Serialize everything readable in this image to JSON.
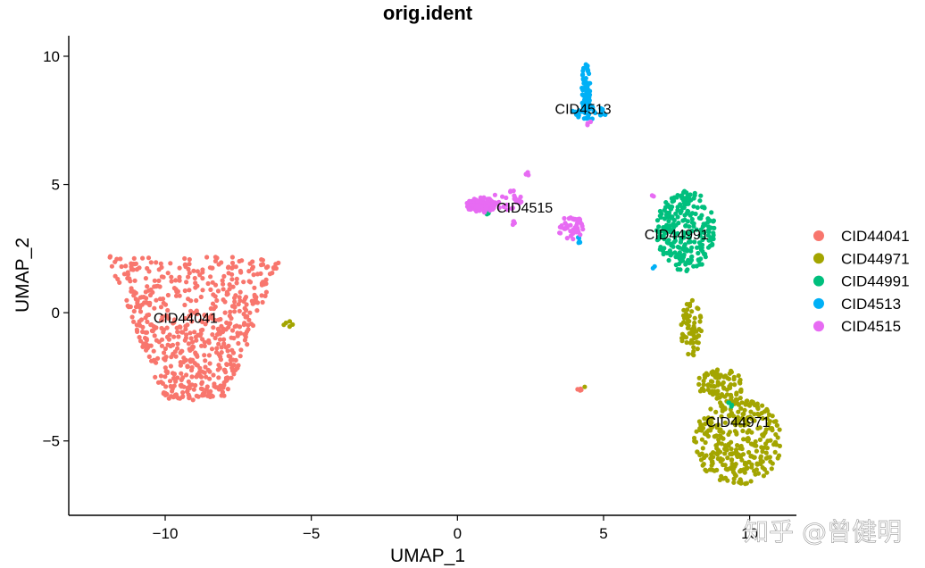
{
  "chart_data": {
    "type": "scatter",
    "title": "orig.ident",
    "xlabel": "UMAP_1",
    "ylabel": "UMAP_2",
    "xlim": [
      -13.3,
      11.6
    ],
    "ylim": [
      -7.9,
      10.8
    ],
    "xticks": [
      -10,
      -5,
      0,
      5,
      10
    ],
    "yticks": [
      -5,
      0,
      5,
      10
    ],
    "xtick_labels": [
      "−10",
      "−5",
      "0",
      "5",
      "10"
    ],
    "ytick_labels": [
      "−5",
      "0",
      "5",
      "10"
    ],
    "grid": false,
    "legend_position": "right",
    "series": [
      {
        "name": "CID44041",
        "color": "#F8766D",
        "clusters": [
          {
            "cx": -9.0,
            "cy": -0.6,
            "rx": 3.0,
            "ry": 2.8,
            "n": 620,
            "shape": "fan"
          },
          {
            "cx": 4.2,
            "cy": -3.0,
            "rx": 0.1,
            "ry": 0.06,
            "n": 4,
            "shape": "blob"
          }
        ],
        "label": {
          "text": "CID44041",
          "x": -9.3,
          "y": -0.25
        }
      },
      {
        "name": "CID44971",
        "color": "#A3A500",
        "clusters": [
          {
            "cx": 8.0,
            "cy": -0.6,
            "rx": 0.35,
            "ry": 1.1,
            "n": 60,
            "shape": "blob"
          },
          {
            "cx": 9.0,
            "cy": -2.8,
            "rx": 0.8,
            "ry": 0.6,
            "n": 80,
            "shape": "blob"
          },
          {
            "cx": 9.6,
            "cy": -5.0,
            "rx": 1.5,
            "ry": 1.7,
            "n": 330,
            "shape": "blob"
          },
          {
            "cx": -5.8,
            "cy": -0.4,
            "rx": 0.2,
            "ry": 0.15,
            "n": 5,
            "shape": "blob"
          },
          {
            "cx": 4.4,
            "cy": -2.9,
            "rx": 0.05,
            "ry": 0.05,
            "n": 1,
            "shape": "blob"
          }
        ],
        "label": {
          "text": "CID44971",
          "x": 9.6,
          "y": -4.3
        }
      },
      {
        "name": "CID44991",
        "color": "#00BF7D",
        "clusters": [
          {
            "cx": 7.8,
            "cy": 3.2,
            "rx": 1.0,
            "ry": 1.6,
            "n": 260,
            "shape": "blob"
          },
          {
            "cx": 9.3,
            "cy": -3.6,
            "rx": 0.1,
            "ry": 0.2,
            "n": 4,
            "shape": "blob"
          },
          {
            "cx": 1.0,
            "cy": 3.9,
            "rx": 0.1,
            "ry": 0.06,
            "n": 3,
            "shape": "blob"
          }
        ],
        "label": {
          "text": "CID44991",
          "x": 7.5,
          "y": 3.0
        }
      },
      {
        "name": "CID4513",
        "color": "#00B0F6",
        "clusters": [
          {
            "cx": 4.4,
            "cy": 8.6,
            "rx": 0.15,
            "ry": 1.2,
            "n": 70,
            "shape": "blob"
          },
          {
            "cx": 4.5,
            "cy": 7.8,
            "rx": 0.6,
            "ry": 0.25,
            "n": 25,
            "shape": "blob"
          },
          {
            "cx": 4.2,
            "cy": 2.8,
            "rx": 0.15,
            "ry": 0.15,
            "n": 5,
            "shape": "blob"
          },
          {
            "cx": 6.7,
            "cy": 1.8,
            "rx": 0.1,
            "ry": 0.1,
            "n": 2,
            "shape": "blob"
          }
        ],
        "label": {
          "text": "CID4513",
          "x": 4.3,
          "y": 7.9
        }
      },
      {
        "name": "CID4515",
        "color": "#E76BF3",
        "clusters": [
          {
            "cx": 0.8,
            "cy": 4.2,
            "rx": 0.5,
            "ry": 0.3,
            "n": 90,
            "shape": "blob"
          },
          {
            "cx": 1.7,
            "cy": 4.4,
            "rx": 0.5,
            "ry": 0.4,
            "n": 25,
            "shape": "blob"
          },
          {
            "cx": 3.9,
            "cy": 3.3,
            "rx": 0.45,
            "ry": 0.45,
            "n": 45,
            "shape": "blob"
          },
          {
            "cx": 2.4,
            "cy": 5.4,
            "rx": 0.08,
            "ry": 0.1,
            "n": 4,
            "shape": "blob"
          },
          {
            "cx": 1.9,
            "cy": 3.5,
            "rx": 0.12,
            "ry": 0.08,
            "n": 4,
            "shape": "blob"
          },
          {
            "cx": 4.5,
            "cy": 7.4,
            "rx": 0.1,
            "ry": 0.1,
            "n": 3,
            "shape": "blob"
          },
          {
            "cx": 6.7,
            "cy": 4.6,
            "rx": 0.05,
            "ry": 0.08,
            "n": 2,
            "shape": "blob"
          }
        ],
        "label": {
          "text": "CID4515",
          "x": 2.3,
          "y": 4.05
        }
      }
    ]
  },
  "watermark": "知乎 @曾健明"
}
